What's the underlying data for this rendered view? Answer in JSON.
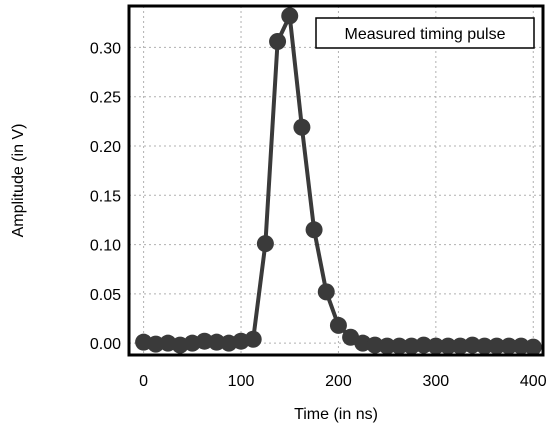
{
  "chart_data": {
    "type": "line",
    "xlabel": "Time (in ns)",
    "ylabel": "Amplitude (in V)",
    "legend": {
      "label": "Measured timing pulse",
      "placement": "top-right"
    },
    "xlim": [
      -15,
      410
    ],
    "ylim": [
      -0.012,
      0.342
    ],
    "xticks": [
      0,
      100,
      200,
      300,
      400
    ],
    "yticks": [
      0.0,
      0.05,
      0.1,
      0.15,
      0.2,
      0.25,
      0.3
    ],
    "xtick_labels": [
      "0",
      "100",
      "200",
      "300",
      "400"
    ],
    "ytick_labels": [
      "0.00",
      "0.05",
      "0.10",
      "0.15",
      "0.20",
      "0.25",
      "0.30"
    ],
    "grid": true,
    "series": [
      {
        "x": [
          0,
          12.5,
          25,
          37.5,
          50,
          62.5,
          75,
          87.5,
          100,
          112.5,
          125,
          137.5,
          150,
          162.5,
          175,
          187.5,
          200,
          212.5,
          225,
          237.5,
          250,
          262.5,
          275,
          287.5,
          300,
          312.5,
          325,
          337.5,
          350,
          362.5,
          375,
          387.5,
          400
        ],
        "values": [
          0.001,
          -0.001,
          0.0,
          -0.002,
          0.0,
          0.002,
          0.001,
          0.0,
          0.002,
          0.004,
          0.101,
          0.306,
          0.332,
          0.219,
          0.115,
          0.052,
          0.018,
          0.006,
          0.0,
          -0.002,
          -0.003,
          -0.003,
          -0.003,
          -0.002,
          -0.003,
          -0.003,
          -0.003,
          -0.002,
          -0.003,
          -0.003,
          -0.003,
          -0.003,
          -0.004
        ]
      }
    ],
    "colors": {
      "line": "#3a3a3a",
      "marker": "#3a3a3a",
      "frame": "#000000",
      "grid": "#b0b0b0"
    }
  }
}
